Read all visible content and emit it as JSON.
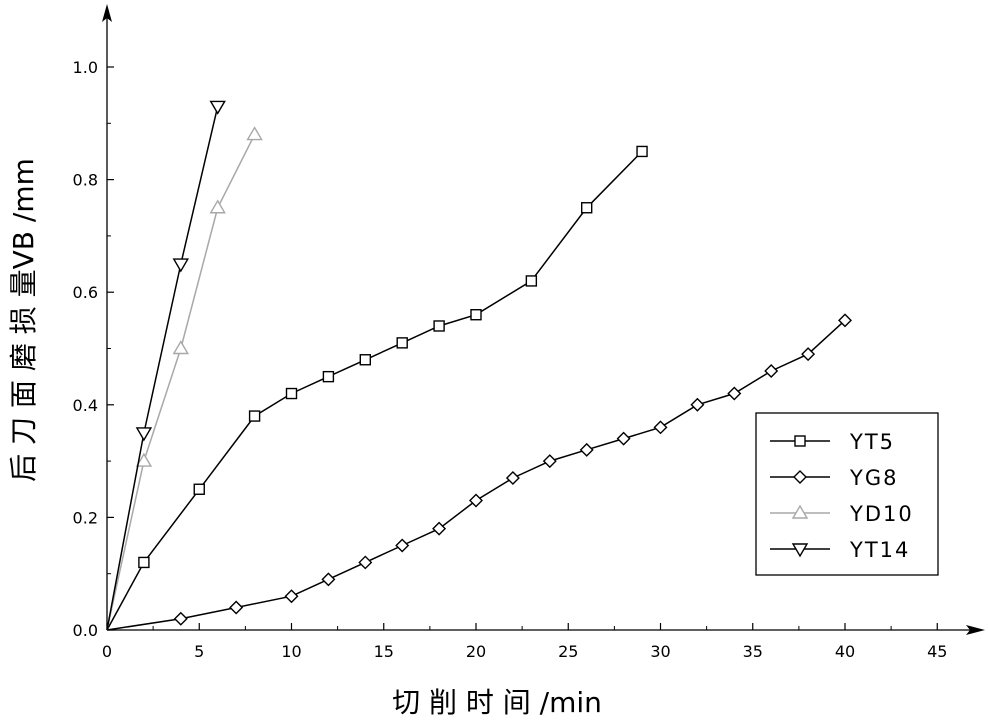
{
  "chart_data": {
    "type": "line",
    "title": "",
    "xlabel": "切 削 时 间 /min",
    "ylabel": "后 刀 面 磨 损 量VB /mm",
    "xlim": [
      0,
      45
    ],
    "ylim": [
      0.0,
      1.0
    ],
    "xticks": [
      0,
      5,
      10,
      15,
      20,
      25,
      30,
      35,
      40,
      45
    ],
    "yticks": [
      0.0,
      0.2,
      0.4,
      0.6,
      0.8,
      1.0
    ],
    "x_tick_labels": [
      "0",
      "5",
      "10",
      "15",
      "20",
      "25",
      "30",
      "35",
      "40",
      "45"
    ],
    "y_tick_labels": [
      "0.0",
      "0.2",
      "0.4",
      "0.6",
      "0.8",
      "1.0"
    ],
    "grid": false,
    "legend_position": "bottom-right",
    "series": [
      {
        "name": "YT5",
        "marker": "square",
        "color": "#000000",
        "x": [
          0,
          2,
          5,
          8,
          10,
          12,
          14,
          16,
          18,
          20,
          23,
          26,
          29
        ],
        "y": [
          0.0,
          0.12,
          0.25,
          0.38,
          0.42,
          0.45,
          0.48,
          0.51,
          0.54,
          0.56,
          0.62,
          0.75,
          0.85
        ]
      },
      {
        "name": "YG8",
        "marker": "circle",
        "color": "#000000",
        "x": [
          0,
          4,
          7,
          10,
          12,
          14,
          16,
          18,
          20,
          22,
          24,
          26,
          28,
          30,
          32,
          34,
          36,
          38,
          40
        ],
        "y": [
          0.0,
          0.02,
          0.04,
          0.06,
          0.09,
          0.12,
          0.15,
          0.18,
          0.23,
          0.27,
          0.3,
          0.32,
          0.34,
          0.36,
          0.4,
          0.42,
          0.46,
          0.49,
          0.55
        ]
      },
      {
        "name": "YD10",
        "marker": "triangle-up",
        "color": "#a8a8a8",
        "x": [
          0,
          2,
          4,
          6,
          8
        ],
        "y": [
          0.0,
          0.3,
          0.5,
          0.75,
          0.88
        ]
      },
      {
        "name": "YT14",
        "marker": "triangle-down",
        "color": "#000000",
        "x": [
          0,
          2,
          4,
          6
        ],
        "y": [
          0.0,
          0.35,
          0.65,
          0.93
        ]
      }
    ]
  }
}
